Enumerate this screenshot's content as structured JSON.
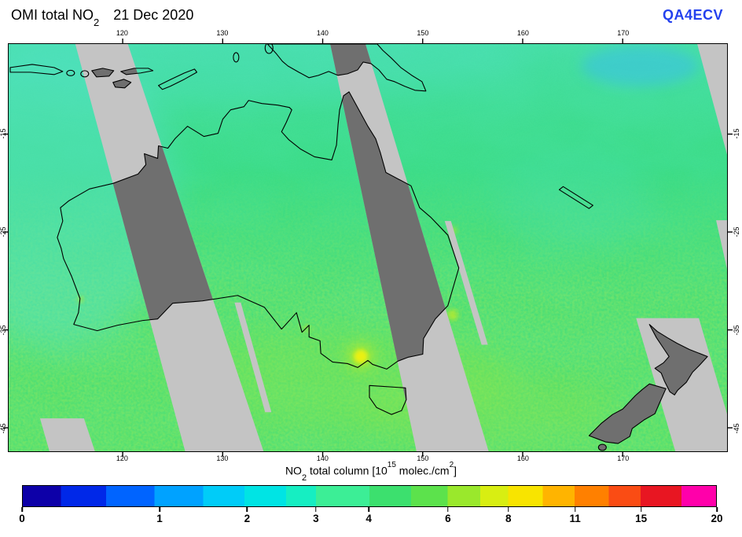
{
  "header": {
    "title": "OMI total NO",
    "title_sub": "2",
    "date": "21 Dec 2020",
    "brand": "QA4ECV"
  },
  "colors": {
    "brand_blue": "#2441ee",
    "field_green": "#3edd7f",
    "field_cyan": "#58dfc6",
    "stripe_light": "#c4c4c4",
    "stripe_dark": "#6f6f6f",
    "coastline": "#000000",
    "hotspot_yellow": "#f4f20a"
  },
  "axes": {
    "lon": [
      {
        "label": "120",
        "f": 0.1587
      },
      {
        "label": "130",
        "f": 0.2979
      },
      {
        "label": "140",
        "f": 0.4371
      },
      {
        "label": "150",
        "f": 0.5763
      },
      {
        "label": "160",
        "f": 0.7155
      },
      {
        "label": "170",
        "f": 0.8546
      }
    ],
    "lat": [
      {
        "label": "-15",
        "f": 0.2212
      },
      {
        "label": "-25",
        "f": 0.4615
      },
      {
        "label": "-35",
        "f": 0.7019
      },
      {
        "label": "-45",
        "f": 0.9423
      }
    ]
  },
  "colorbar": {
    "label_no": "NO",
    "label_no_sub": "2",
    "label_mid": " total column [10",
    "label_exp": "15",
    "label_unit": " molec./cm",
    "label_exp2": "2",
    "label_end": "]",
    "ticks": [
      {
        "label": "0",
        "f": 0.0
      },
      {
        "label": "1",
        "f": 0.198
      },
      {
        "label": "2",
        "f": 0.324
      },
      {
        "label": "3",
        "f": 0.423
      },
      {
        "label": "4",
        "f": 0.499
      },
      {
        "label": "6",
        "f": 0.613
      },
      {
        "label": "8",
        "f": 0.7
      },
      {
        "label": "11",
        "f": 0.796
      },
      {
        "label": "15",
        "f": 0.891
      },
      {
        "label": "20",
        "f": 1.0
      }
    ],
    "segments": [
      {
        "to": 0.055,
        "color": "#0d00a8"
      },
      {
        "to": 0.12,
        "color": "#0028e8"
      },
      {
        "to": 0.19,
        "color": "#0064ff"
      },
      {
        "to": 0.26,
        "color": "#00a2ff"
      },
      {
        "to": 0.32,
        "color": "#00ccf8"
      },
      {
        "to": 0.38,
        "color": "#00e4e4"
      },
      {
        "to": 0.423,
        "color": "#16eec2"
      },
      {
        "to": 0.5,
        "color": "#3cee96"
      },
      {
        "to": 0.56,
        "color": "#3ce06e"
      },
      {
        "to": 0.613,
        "color": "#5ce24c"
      },
      {
        "to": 0.66,
        "color": "#9ae82c"
      },
      {
        "to": 0.7,
        "color": "#d8ee12"
      },
      {
        "to": 0.75,
        "color": "#f8e400"
      },
      {
        "to": 0.796,
        "color": "#ffb400"
      },
      {
        "to": 0.845,
        "color": "#ff8000"
      },
      {
        "to": 0.891,
        "color": "#fa4c14"
      },
      {
        "to": 0.95,
        "color": "#e81622"
      },
      {
        "to": 1.0,
        "color": "#ff00aa"
      }
    ]
  }
}
